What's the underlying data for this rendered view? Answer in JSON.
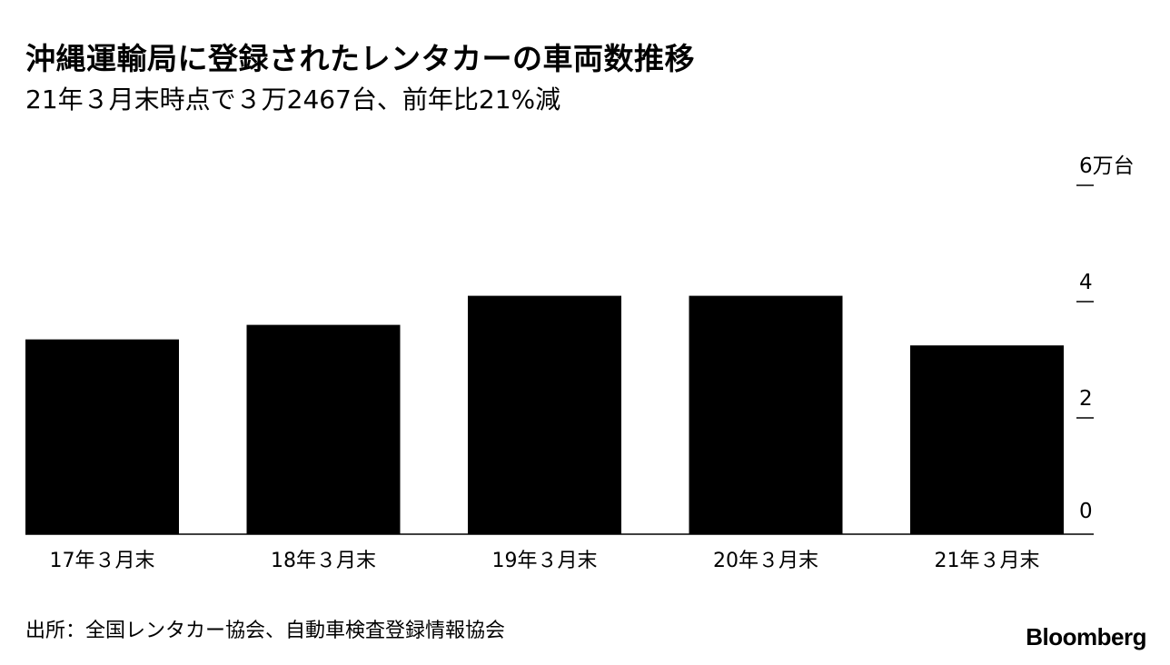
{
  "header": {
    "title": "沖縄運輸局に登録されたレンタカーの車両数推移",
    "subtitle": "21年３月末時点で３万2467台、前年比21%減"
  },
  "footer": {
    "source": "出所：全国レンタカー協会、自動車検査登録情報協会",
    "brand": "Bloomberg"
  },
  "chart_data": {
    "type": "bar",
    "categories": [
      "17年３月末",
      "18年３月末",
      "19年３月末",
      "20年３月末",
      "21年３月末"
    ],
    "values": [
      3.35,
      3.6,
      4.1,
      4.1,
      3.2467
    ],
    "ylim": [
      0,
      6
    ],
    "yticks": [
      0,
      2,
      4,
      6
    ],
    "ytick_labels": [
      "0",
      "2",
      "4",
      "6万台"
    ],
    "axis_position": "right",
    "grid": false,
    "bar_color": "#000000"
  }
}
